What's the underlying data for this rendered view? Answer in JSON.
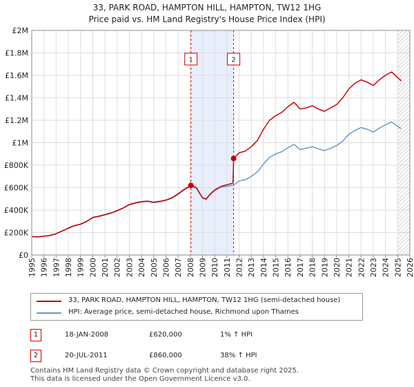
{
  "title_line1": "33, PARK ROAD, HAMPTON HILL, HAMPTON, TW12 1HG",
  "title_line2": "Price paid vs. HM Land Registry's House Price Index (HPI)",
  "chart_data": {
    "type": "line",
    "title": "33, PARK ROAD, HAMPTON HILL, HAMPTON, TW12 1HG — Price paid vs. HM Land Registry's House Price Index (HPI)",
    "xlabel": "",
    "ylabel": "",
    "xlim": [
      1995.0,
      2026.0
    ],
    "ylim": [
      0,
      2000000
    ],
    "y_ticks": [
      {
        "value": 0,
        "label": "£0"
      },
      {
        "value": 200000,
        "label": "£200K"
      },
      {
        "value": 400000,
        "label": "£400K"
      },
      {
        "value": 600000,
        "label": "£600K"
      },
      {
        "value": 800000,
        "label": "£800K"
      },
      {
        "value": 1000000,
        "label": "£1M"
      },
      {
        "value": 1200000,
        "label": "£1.2M"
      },
      {
        "value": 1400000,
        "label": "£1.4M"
      },
      {
        "value": 1600000,
        "label": "£1.6M"
      },
      {
        "value": 1800000,
        "label": "£1.8M"
      },
      {
        "value": 2000000,
        "label": "£2M"
      }
    ],
    "x_ticks": [
      "1995",
      "1996",
      "1997",
      "1998",
      "1999",
      "2000",
      "2001",
      "2002",
      "2003",
      "2004",
      "2005",
      "2006",
      "2007",
      "2008",
      "2009",
      "2010",
      "2011",
      "2012",
      "2013",
      "2014",
      "2015",
      "2016",
      "2017",
      "2018",
      "2019",
      "2020",
      "2021",
      "2022",
      "2023",
      "2024",
      "2025",
      "2026"
    ],
    "grid": true,
    "shaded_period": {
      "from": 2008.05,
      "to": 2011.55
    },
    "forecast_hatch_from": 2025.0,
    "colors": {
      "property": "#cc0000",
      "hpi": "#6699cc",
      "grid": "#dddddd",
      "shade": "#e8eefc",
      "vline": "#cc0000"
    },
    "series": [
      {
        "name": "33, PARK ROAD, HAMPTON HILL, HAMPTON, TW12 1HG (semi-detached house)",
        "color": "#cc0000",
        "x": [
          1995.0,
          1995.5,
          1996.0,
          1996.5,
          1997.0,
          1997.5,
          1998.0,
          1998.5,
          1999.0,
          1999.5,
          2000.0,
          2000.5,
          2001.0,
          2001.5,
          2002.0,
          2002.5,
          2003.0,
          2003.5,
          2004.0,
          2004.5,
          2005.0,
          2005.5,
          2006.0,
          2006.5,
          2007.0,
          2007.5,
          2008.05,
          2008.5,
          2009.0,
          2009.3,
          2009.6,
          2010.0,
          2010.5,
          2011.0,
          2011.5,
          2011.55,
          2012.0,
          2012.5,
          2013.0,
          2013.5,
          2014.0,
          2014.5,
          2015.0,
          2015.5,
          2016.0,
          2016.5,
          2017.0,
          2017.5,
          2018.0,
          2018.5,
          2019.0,
          2019.5,
          2020.0,
          2020.5,
          2021.0,
          2021.5,
          2022.0,
          2022.5,
          2023.0,
          2023.5,
          2024.0,
          2024.5,
          2025.0,
          2025.3
        ],
        "values": [
          165000,
          162000,
          168000,
          175000,
          190000,
          215000,
          240000,
          262000,
          275000,
          300000,
          335000,
          345000,
          360000,
          375000,
          395000,
          420000,
          450000,
          465000,
          475000,
          480000,
          470000,
          478000,
          490000,
          510000,
          545000,
          585000,
          620000,
          600000,
          510000,
          500000,
          540000,
          580000,
          610000,
          625000,
          640000,
          860000,
          910000,
          925000,
          965000,
          1020000,
          1120000,
          1200000,
          1240000,
          1270000,
          1320000,
          1360000,
          1300000,
          1310000,
          1330000,
          1300000,
          1280000,
          1310000,
          1340000,
          1400000,
          1480000,
          1530000,
          1560000,
          1540000,
          1510000,
          1560000,
          1600000,
          1630000,
          1580000,
          1550000
        ]
      },
      {
        "name": "HPI: Average price, semi-detached house, Richmond upon Thames",
        "color": "#6699cc",
        "x": [
          1995.0,
          1995.5,
          1996.0,
          1996.5,
          1997.0,
          1997.5,
          1998.0,
          1998.5,
          1999.0,
          1999.5,
          2000.0,
          2000.5,
          2001.0,
          2001.5,
          2002.0,
          2002.5,
          2003.0,
          2003.5,
          2004.0,
          2004.5,
          2005.0,
          2005.5,
          2006.0,
          2006.5,
          2007.0,
          2007.5,
          2008.05,
          2008.5,
          2009.0,
          2009.3,
          2009.6,
          2010.0,
          2010.5,
          2011.0,
          2011.55,
          2012.0,
          2012.5,
          2013.0,
          2013.5,
          2014.0,
          2014.5,
          2015.0,
          2015.5,
          2016.0,
          2016.5,
          2017.0,
          2017.5,
          2018.0,
          2018.5,
          2019.0,
          2019.5,
          2020.0,
          2020.5,
          2021.0,
          2021.5,
          2022.0,
          2022.5,
          2023.0,
          2023.5,
          2024.0,
          2024.5,
          2025.0,
          2025.3
        ],
        "values": [
          163000,
          160000,
          166000,
          173000,
          188000,
          212000,
          237000,
          259000,
          272000,
          297000,
          332000,
          342000,
          357000,
          372000,
          392000,
          417000,
          447000,
          461000,
          471000,
          476000,
          466000,
          474000,
          486000,
          506000,
          540000,
          580000,
          614000,
          594000,
          505000,
          495000,
          535000,
          574000,
          604000,
          612000,
          623000,
          660000,
          670000,
          700000,
          740000,
          810000,
          870000,
          900000,
          920000,
          955000,
          985000,
          940000,
          950000,
          965000,
          945000,
          930000,
          950000,
          975000,
          1015000,
          1075000,
          1110000,
          1135000,
          1120000,
          1095000,
          1130000,
          1160000,
          1185000,
          1145000,
          1125000
        ]
      }
    ],
    "markers": [
      {
        "label": "1",
        "x": 2008.05,
        "value": 620000
      },
      {
        "label": "2",
        "x": 2011.55,
        "value": 860000
      }
    ]
  },
  "legend": {
    "property_label": "33, PARK ROAD, HAMPTON HILL, HAMPTON, TW12 1HG (semi-detached house)",
    "hpi_label": "HPI: Average price, semi-detached house, Richmond upon Thames"
  },
  "transactions": [
    {
      "num": "1",
      "date": "18-JAN-2008",
      "price": "£620,000",
      "hpi": "1% ↑ HPI"
    },
    {
      "num": "2",
      "date": "20-JUL-2011",
      "price": "£860,000",
      "hpi": "38% ↑ HPI"
    }
  ],
  "footer": {
    "line1": "Contains HM Land Registry data © Crown copyright and database right 2025.",
    "line2": "This data is licensed under the Open Government Licence v3.0."
  }
}
